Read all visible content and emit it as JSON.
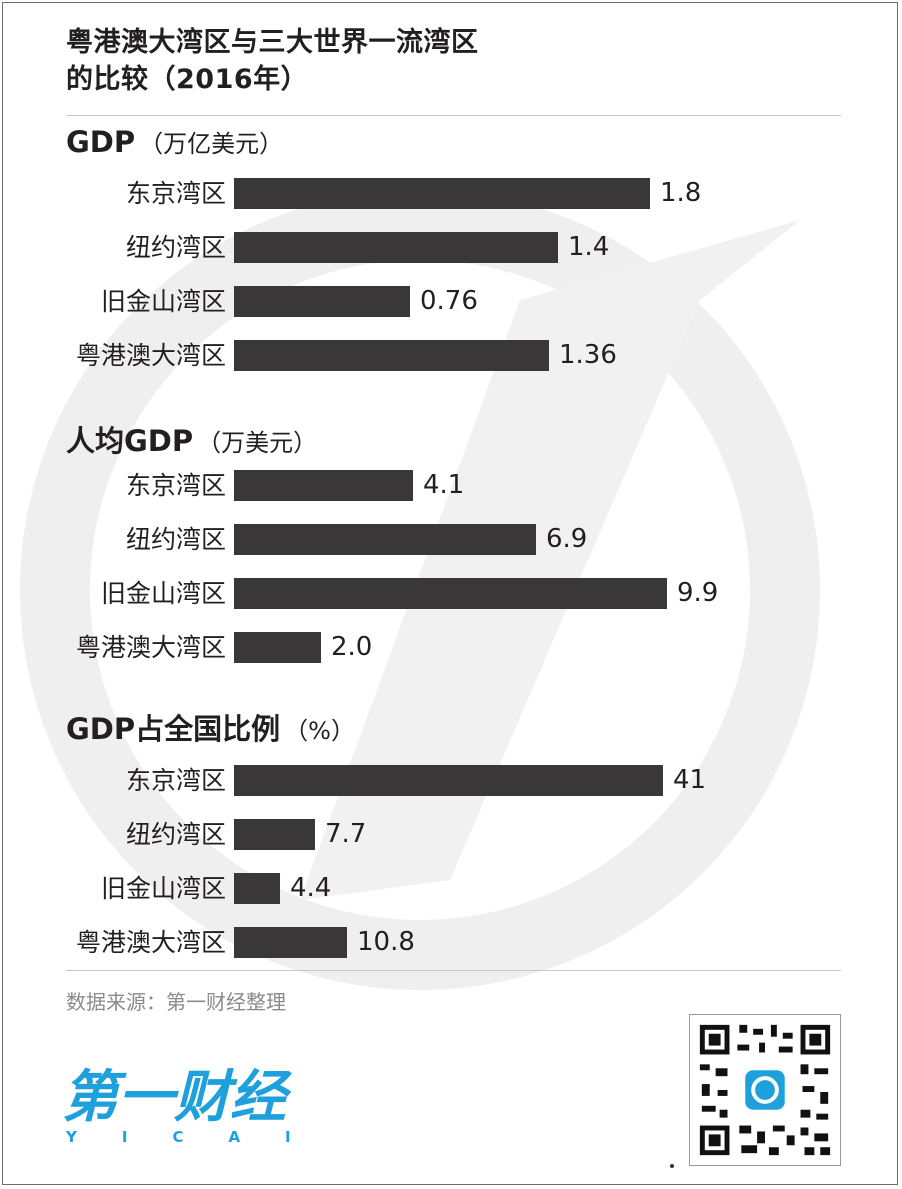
{
  "title_lines": [
    "粤港澳大湾区与三大世界一流湾区",
    "的比较（2016年）"
  ],
  "chart_data": [
    {
      "type": "bar",
      "orientation": "horizontal",
      "title": "GDP",
      "unit": "（万亿美元）",
      "categories": [
        "东京湾区",
        "纽约湾区",
        "旧金山湾区",
        "粤港澳大湾区"
      ],
      "values": [
        1.8,
        1.4,
        0.76,
        1.36
      ],
      "value_labels": [
        "1.8",
        "1.4",
        "0.76",
        "1.36"
      ],
      "xlim": [
        0,
        2.4
      ]
    },
    {
      "type": "bar",
      "orientation": "horizontal",
      "title": "人均GDP",
      "unit": "（万美元）",
      "categories": [
        "东京湾区",
        "纽约湾区",
        "旧金山湾区",
        "粤港澳大湾区"
      ],
      "values": [
        4.1,
        6.9,
        9.9,
        2.0
      ],
      "value_labels": [
        "4.1",
        "6.9",
        "9.9",
        "2.0"
      ],
      "xlim": [
        0,
        12.7
      ]
    },
    {
      "type": "bar",
      "orientation": "horizontal",
      "title": "GDP占全国比例",
      "unit": "（%）",
      "categories": [
        "东京湾区",
        "纽约湾区",
        "旧金山湾区",
        "粤港澳大湾区"
      ],
      "values": [
        41,
        7.7,
        4.4,
        10.8
      ],
      "value_labels": [
        "41",
        "7.7",
        "4.4",
        "10.8"
      ],
      "xlim": [
        0,
        53
      ]
    }
  ],
  "source": "数据来源：第一财经整理",
  "logo": {
    "text": "第一财经",
    "sub": "YICAI",
    "color": "#1ea0dc"
  },
  "colors": {
    "bar": "#3a3738",
    "watermark": "#ececec",
    "text": "#231f20"
  },
  "icons": {
    "qr": "qr-code-icon"
  }
}
